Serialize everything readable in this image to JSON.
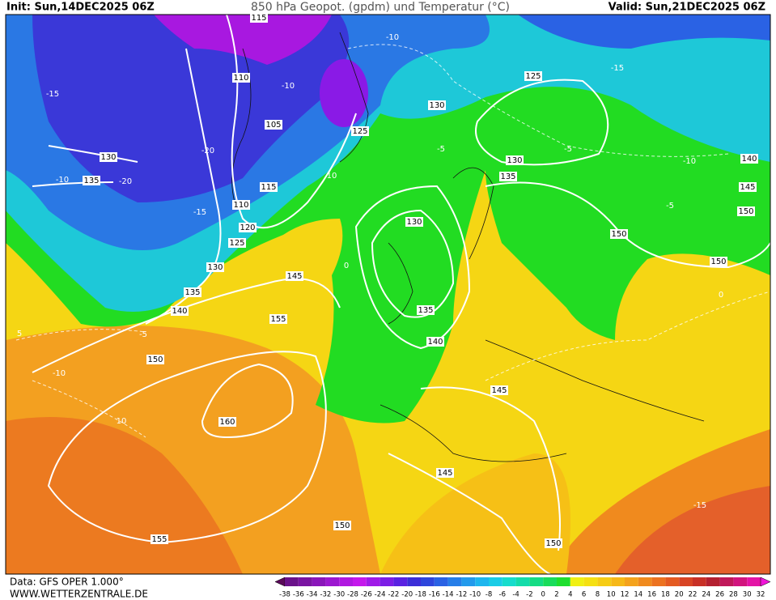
{
  "header": {
    "init": "Init: Sun,14DEC2025 06Z",
    "title": "850 hPa Geopot. (gpdm) und Temperatur (°C)",
    "valid": "Valid: Sun,21DEC2025 06Z"
  },
  "footer": {
    "data": "Data: GFS OPER 1.000°",
    "site": "WWW.WETTERZENTRALE.DE"
  },
  "contour_labels": {
    "geopotential": [
      115,
      110,
      105,
      115,
      110,
      120,
      125,
      130,
      135,
      140,
      145,
      155,
      150,
      160,
      155,
      150,
      145,
      145,
      140,
      135,
      130,
      130,
      125,
      125,
      130,
      135,
      140,
      145,
      150,
      150,
      150,
      150,
      130,
      135
    ],
    "temperature": [
      -10,
      -5,
      -5,
      -10,
      -5,
      0,
      0,
      -5,
      5,
      -10,
      10,
      -15,
      -15,
      -20,
      -15,
      -20,
      -10,
      -10,
      10,
      -15
    ]
  },
  "colorbar": {
    "labels": [
      -38,
      -36,
      -34,
      -32,
      -30,
      -28,
      -26,
      -24,
      -22,
      -20,
      -18,
      -16,
      -14,
      -12,
      -10,
      -8,
      -6,
      -4,
      -2,
      0,
      2,
      4,
      6,
      8,
      10,
      12,
      14,
      16,
      18,
      20,
      22,
      24,
      26,
      28,
      30,
      32
    ],
    "colors": [
      "#5a0a5a",
      "#6a128a",
      "#7a14a2",
      "#8a16ba",
      "#9c18d0",
      "#b018e0",
      "#c418ec",
      "#a01ae8",
      "#7c1ee6",
      "#5a22e2",
      "#3c2ed8",
      "#2e46dc",
      "#2a62e4",
      "#267ee8",
      "#229aec",
      "#1eb6ee",
      "#1acce6",
      "#16dccc",
      "#14dcaa",
      "#14dc84",
      "#18dc5a",
      "#1ede2e",
      "#f0f014",
      "#f5e012",
      "#f6cc14",
      "#f6b818",
      "#f4a21c",
      "#f08a1e",
      "#ec7220",
      "#e45a22",
      "#d84424",
      "#c83026",
      "#b42030",
      "#c0185a",
      "#d2147e",
      "#e414a6",
      "#f014d8"
    ]
  }
}
